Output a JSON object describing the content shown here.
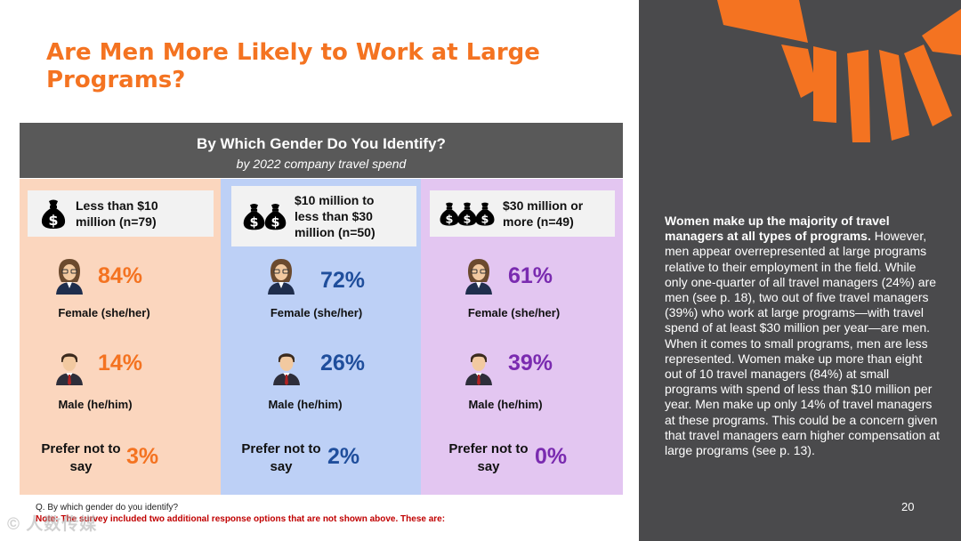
{
  "title": "Are Men More Likely to Work at Large Programs?",
  "chart_data": {
    "type": "table",
    "title": "By Which Gender Do You Identify?",
    "subtitle": "by 2022 company travel spend",
    "segments": [
      {
        "label": "Less than $10 million (n=79)",
        "icon": "money-bag-icon",
        "bags": 1,
        "bg": "#FBD6BE",
        "color": "#F47321",
        "female": "84%",
        "male": "14%",
        "prefer": "3%"
      },
      {
        "label": "$10 million to less than $30 million (n=50)",
        "icon": "money-bags-icon",
        "bags": 2,
        "bg": "#BDD0F6",
        "color": "#1F4E9C",
        "female": "72%",
        "male": "26%",
        "prefer": "2%"
      },
      {
        "label": "$30 million or more (n=49)",
        "icon": "money-bags-icon",
        "bags": 3,
        "bg": "#E3C6F1",
        "color": "#7A2BB0",
        "female": "61%",
        "male": "39%",
        "prefer": "0%"
      }
    ],
    "categories": [
      "Female (she/her)",
      "Male (he/him)",
      "Prefer not to say"
    ]
  },
  "footnote": "Q. By which gender do you identify?",
  "note": "Note: The survey included two additional response options that are not shown above. These are:",
  "watermark": "© 人数传媒",
  "side": {
    "bold_text": "Women make up the majority of travel managers at all types of programs.",
    "body_text": " However, men appear overrepresented at large programs relative to their employment in the field. While only one-quarter of all travel managers (24%) are men (see p. 18), two out of five travel managers (39%) who work at large programs—with travel spend of at least $30 million per year—are men. When it comes to small programs, men are less represented. Women make up more than eight out of 10 travel managers (84%) at small programs with spend of less than $10 million per year. Men make up only 14% of travel managers at these programs. This could be a concern given that travel managers earn higher compensation at large programs (see p. 13).",
    "page_number": "20"
  },
  "colors": {
    "accent": "#F47321",
    "header_bg": "#595959",
    "panel_bg": "#4A4A4C",
    "note_red": "#C00000"
  }
}
